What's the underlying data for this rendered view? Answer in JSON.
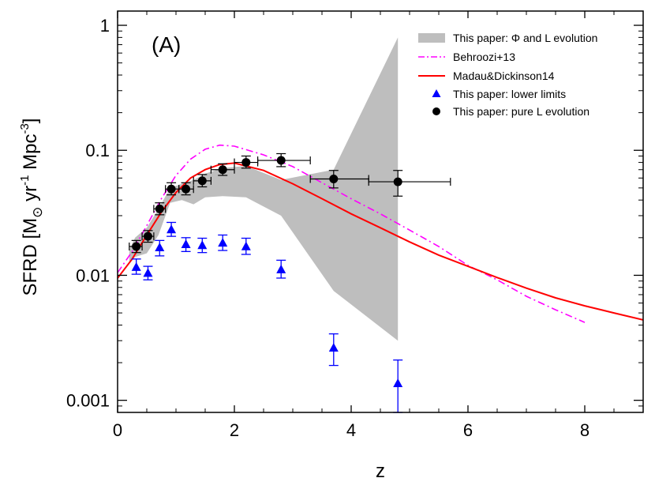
{
  "chart_data": {
    "type": "scatter",
    "panel_label": "(A)",
    "xlabel": "z",
    "ylabel": {
      "prefix": "SFRD [M",
      "sun_symbol": "⊙",
      "yr": " yr",
      "yr_exp": "-1",
      "mpc": " Mpc",
      "mpc_exp": "-3",
      "suffix": "]"
    },
    "x_scale": "linear",
    "y_scale": "log",
    "xlim": [
      0,
      9
    ],
    "ylim": [
      0.0008,
      1.3
    ],
    "x_ticks": [
      0,
      2,
      4,
      6,
      8
    ],
    "x_tick_labels": [
      "0",
      "2",
      "4",
      "6",
      "8"
    ],
    "y_ticks": [
      0.001,
      0.01,
      0.1,
      1
    ],
    "y_tick_labels": [
      "0.001",
      "0.01",
      "0.1",
      "1"
    ],
    "legend_position": "top-right",
    "colors": {
      "band": "#bebebe",
      "behroozi": "#ff00ff",
      "madau": "#ff0000",
      "lower": "#0000ff",
      "pure": "#000000"
    },
    "series": [
      {
        "name": "This paper: Φ and L evolution",
        "kind": "band",
        "x": [
          0.2,
          0.3,
          0.5,
          0.7,
          0.9,
          1.1,
          1.3,
          1.5,
          1.8,
          2.2,
          2.8,
          3.7,
          4.8
        ],
        "upper": [
          0.016,
          0.02,
          0.024,
          0.034,
          0.05,
          0.054,
          0.058,
          0.065,
          0.072,
          0.075,
          0.058,
          0.07,
          0.8
        ],
        "lower": [
          0.0125,
          0.014,
          0.015,
          0.021,
          0.038,
          0.04,
          0.037,
          0.042,
          0.043,
          0.042,
          0.03,
          0.0075,
          0.003
        ]
      },
      {
        "name": "Behroozi+13",
        "kind": "line",
        "style": "dash-dot",
        "x": [
          0,
          0.25,
          0.5,
          0.75,
          1.0,
          1.25,
          1.5,
          1.75,
          2.0,
          2.5,
          3.0,
          3.5,
          4.0,
          4.5,
          5.0,
          5.5,
          6.0,
          6.5,
          7.0,
          7.5,
          8.0
        ],
        "y": [
          0.0105,
          0.0155,
          0.025,
          0.041,
          0.063,
          0.085,
          0.102,
          0.11,
          0.108,
          0.092,
          0.074,
          0.055,
          0.041,
          0.031,
          0.023,
          0.017,
          0.012,
          0.0092,
          0.0068,
          0.0053,
          0.0042
        ]
      },
      {
        "name": "Madau&Dickinson14",
        "kind": "line",
        "style": "solid",
        "x": [
          0,
          0.25,
          0.5,
          0.75,
          1.0,
          1.25,
          1.5,
          1.75,
          2.0,
          2.5,
          3.0,
          3.5,
          4.0,
          4.5,
          5.0,
          5.5,
          6.0,
          6.5,
          7.0,
          7.5,
          8.0,
          8.5,
          9.0
        ],
        "y": [
          0.0095,
          0.0135,
          0.021,
          0.032,
          0.046,
          0.06,
          0.07,
          0.077,
          0.079,
          0.069,
          0.054,
          0.041,
          0.031,
          0.024,
          0.0185,
          0.0145,
          0.0118,
          0.0096,
          0.0079,
          0.0066,
          0.0057,
          0.005,
          0.0044
        ]
      },
      {
        "name": "This paper: lower limits",
        "kind": "points",
        "marker": "triangle",
        "x": [
          0.32,
          0.52,
          0.72,
          0.92,
          1.17,
          1.45,
          1.8,
          2.2,
          2.8,
          3.7,
          4.8
        ],
        "y": [
          0.0115,
          0.0103,
          0.0165,
          0.023,
          0.0175,
          0.0172,
          0.018,
          0.0168,
          0.011,
          0.0026,
          0.00135
        ],
        "yerr_low": [
          0.0102,
          0.0092,
          0.0143,
          0.0205,
          0.0155,
          0.0152,
          0.0158,
          0.0147,
          0.0095,
          0.0019,
          0.0008
        ],
        "yerr_high": [
          0.0135,
          0.0118,
          0.019,
          0.0265,
          0.02,
          0.0198,
          0.021,
          0.0198,
          0.0132,
          0.0034,
          0.0021
        ]
      },
      {
        "name": "This paper: pure L evolution",
        "kind": "points",
        "marker": "circle",
        "x": [
          0.32,
          0.52,
          0.72,
          0.92,
          1.17,
          1.45,
          1.8,
          2.2,
          2.8,
          3.7,
          4.8
        ],
        "y": [
          0.017,
          0.0205,
          0.034,
          0.049,
          0.049,
          0.057,
          0.07,
          0.08,
          0.083,
          0.059,
          0.056
        ],
        "xerr_low": [
          0.2,
          0.42,
          0.62,
          0.82,
          1.05,
          1.3,
          1.6,
          2.0,
          2.4,
          3.3,
          4.3
        ],
        "xerr_high": [
          0.42,
          0.62,
          0.82,
          1.05,
          1.3,
          1.6,
          2.0,
          2.4,
          3.3,
          4.3,
          5.7
        ],
        "yerr_low": [
          0.0152,
          0.0184,
          0.0305,
          0.044,
          0.044,
          0.051,
          0.063,
          0.072,
          0.074,
          0.05,
          0.043
        ],
        "yerr_high": [
          0.019,
          0.0228,
          0.038,
          0.055,
          0.055,
          0.064,
          0.078,
          0.09,
          0.094,
          0.069,
          0.069
        ]
      }
    ]
  }
}
